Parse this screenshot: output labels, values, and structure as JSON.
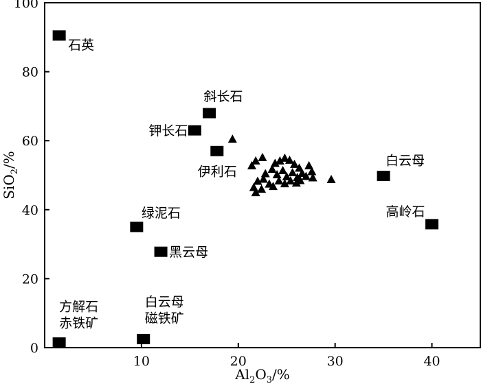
{
  "chart_data": {
    "type": "scatter",
    "xlabel_parts": [
      "Al",
      "2",
      "O",
      "3",
      "/%"
    ],
    "ylabel_parts": [
      "SiO",
      "2",
      "/%"
    ],
    "xlim": [
      0,
      45
    ],
    "ylim": [
      0,
      100
    ],
    "x_ticks": [
      10,
      20,
      30,
      40
    ],
    "y_ticks": [
      0,
      20,
      40,
      60,
      80,
      100
    ],
    "grid": false,
    "minerals": [
      {
        "name": "石英",
        "x": 1.5,
        "y": 90.5
      },
      {
        "name": "斜长石",
        "x": 17.0,
        "y": 68.0
      },
      {
        "name": "钾长石",
        "x": 15.5,
        "y": 63.0
      },
      {
        "name": "伊利石",
        "x": 17.8,
        "y": 57.0
      },
      {
        "name": "白云母",
        "x": 35.0,
        "y": 49.8
      },
      {
        "name": "高岭石",
        "x": 40.0,
        "y": 35.8
      },
      {
        "name": "绿泥石",
        "x": 9.5,
        "y": 35.0
      },
      {
        "name": "黑云母",
        "x": 12.0,
        "y": 27.8
      },
      {
        "name": "方解石",
        "x": 1.5,
        "y": 1.5
      },
      {
        "name": "赤铁矿",
        "x": 1.5,
        "y": 1.5
      },
      {
        "name": "白云母",
        "x": 10.2,
        "y": 2.5
      },
      {
        "name": "磁铁矿",
        "x": 10.2,
        "y": 2.5
      }
    ],
    "samples": [
      {
        "x": 19.4,
        "y": 60.5
      },
      {
        "x": 29.6,
        "y": 48.8
      },
      {
        "x": 21.4,
        "y": 52.8
      },
      {
        "x": 21.8,
        "y": 54.2
      },
      {
        "x": 22.5,
        "y": 55.2
      },
      {
        "x": 23.8,
        "y": 53.5
      },
      {
        "x": 24.3,
        "y": 54.2
      },
      {
        "x": 24.8,
        "y": 55.0
      },
      {
        "x": 25.3,
        "y": 54.4
      },
      {
        "x": 25.8,
        "y": 53.2
      },
      {
        "x": 26.3,
        "y": 52.1
      },
      {
        "x": 27.3,
        "y": 52.8
      },
      {
        "x": 27.6,
        "y": 51.1
      },
      {
        "x": 22.8,
        "y": 50.5
      },
      {
        "x": 23.5,
        "y": 51.8
      },
      {
        "x": 24.0,
        "y": 50.2
      },
      {
        "x": 24.6,
        "y": 51.4
      },
      {
        "x": 25.0,
        "y": 49.6
      },
      {
        "x": 25.6,
        "y": 50.8
      },
      {
        "x": 26.1,
        "y": 49.4
      },
      {
        "x": 26.6,
        "y": 50.6
      },
      {
        "x": 27.0,
        "y": 49.7
      },
      {
        "x": 27.7,
        "y": 49.3
      },
      {
        "x": 22.0,
        "y": 48.3
      },
      {
        "x": 22.6,
        "y": 48.9
      },
      {
        "x": 23.2,
        "y": 47.5
      },
      {
        "x": 24.2,
        "y": 48.4
      },
      {
        "x": 24.8,
        "y": 47.6
      },
      {
        "x": 25.4,
        "y": 48.4
      },
      {
        "x": 26.0,
        "y": 47.8
      },
      {
        "x": 21.6,
        "y": 46.5
      },
      {
        "x": 21.8,
        "y": 45.0
      },
      {
        "x": 22.4,
        "y": 46.0
      },
      {
        "x": 23.6,
        "y": 46.8
      },
      {
        "x": 26.4,
        "y": 48.5
      }
    ]
  }
}
